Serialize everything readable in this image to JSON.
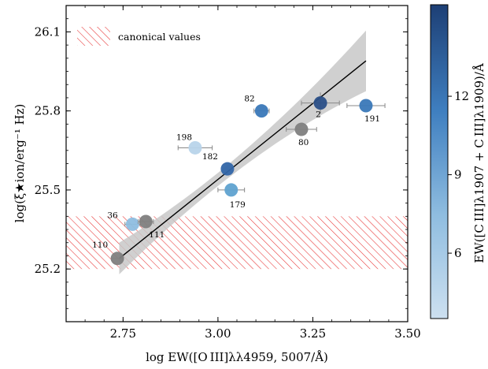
{
  "chart_data": {
    "type": "scatter",
    "xlabel": "log EW([O III]λλ4959, 5007/Å)",
    "ylabel": "log(ξ★ion/erg⁻¹ Hz)",
    "xlim": [
      2.6,
      3.5
    ],
    "ylim": [
      25.0,
      26.2
    ],
    "x_ticks": [
      "2.75",
      "3.00",
      "3.25",
      "3.50"
    ],
    "y_ticks": [
      "25.2",
      "25.5",
      "25.8",
      "26.1"
    ],
    "legend": {
      "label": "canonical values",
      "placement": "top-left"
    },
    "canonical_band": {
      "ymin": 25.2,
      "ymax": 25.4,
      "color": "#e63030"
    },
    "fit_line": {
      "x": [
        2.74,
        3.39
      ],
      "y": [
        25.24,
        25.99
      ],
      "color": "#000000"
    },
    "fit_band_color": "#c8c8c8",
    "colorbar": {
      "label": "EW([C III]λ1907 + C III]λ1909)/Å",
      "range": [
        3.5,
        15.5
      ],
      "ticks": [
        "6",
        "9",
        "12"
      ],
      "colormap": [
        "#cde0f0",
        "#8fbde0",
        "#3f7fc0",
        "#1d3f75"
      ]
    },
    "points": [
      {
        "label": "82",
        "x": 3.115,
        "y": 25.8,
        "xerr": 0.02,
        "yerr": 0,
        "color": "#3a78b8"
      },
      {
        "label": "2",
        "x": 3.27,
        "y": 25.83,
        "xerr": 0.05,
        "yerr": 0.04,
        "color": "#2a4f88"
      },
      {
        "label": "191",
        "x": 3.39,
        "y": 25.82,
        "xerr": 0.05,
        "yerr": 0,
        "color": "#3a78b8"
      },
      {
        "label": "80",
        "x": 3.22,
        "y": 25.73,
        "xerr": 0.04,
        "yerr": 0,
        "color": "#808080"
      },
      {
        "label": "198",
        "x": 2.94,
        "y": 25.66,
        "xerr": 0.045,
        "yerr": 0,
        "color": "#b8d4ea"
      },
      {
        "label": "182",
        "x": 3.025,
        "y": 25.58,
        "xerr": 0,
        "yerr": 0,
        "color": "#3366a8"
      },
      {
        "label": "179",
        "x": 3.035,
        "y": 25.5,
        "xerr": 0.035,
        "yerr": 0,
        "color": "#5fa2d0"
      },
      {
        "label": "36",
        "x": 2.775,
        "y": 25.37,
        "xerr": 0.02,
        "yerr": 0,
        "color": "#8ebee0"
      },
      {
        "label": "111",
        "x": 2.81,
        "y": 25.38,
        "xerr": 0.02,
        "yerr": 0,
        "color": "#808080"
      },
      {
        "label": "110",
        "x": 2.735,
        "y": 25.24,
        "xerr": 0.015,
        "yerr": 0,
        "color": "#808080"
      }
    ]
  }
}
